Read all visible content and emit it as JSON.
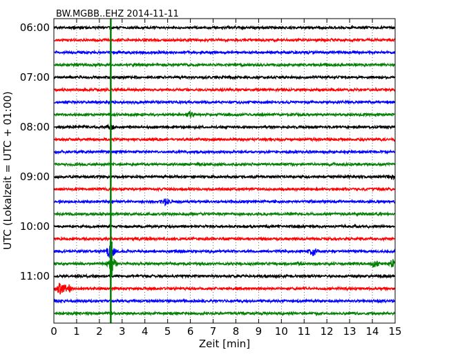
{
  "chart_data": {
    "type": "line",
    "title": "BW.MGBB..EHZ 2014-11-11",
    "xlabel": "Zeit  [min]",
    "ylabel": "UTC (Lokalzeit = UTC + 01:00)",
    "xlim": [
      0,
      15
    ],
    "x_ticks": [
      "0",
      "1",
      "2",
      "3",
      "4",
      "5",
      "6",
      "7",
      "8",
      "9",
      "10",
      "11",
      "12",
      "13",
      "14",
      "15"
    ],
    "y_ticks": [
      "06:00",
      "07:00",
      "08:00",
      "09:00",
      "10:00",
      "11:00"
    ],
    "grid": "vertical dotted",
    "trace_start": "06:00",
    "trace_interval_min": 15,
    "trace_colors": [
      "#000000",
      "#ff0000",
      "#0000ff",
      "#008000"
    ],
    "series": [
      {
        "start": "06:00",
        "color": "#000000",
        "events": []
      },
      {
        "start": "06:15",
        "color": "#ff0000",
        "events": []
      },
      {
        "start": "06:30",
        "color": "#0000ff",
        "events": []
      },
      {
        "start": "06:45",
        "color": "#008000",
        "events": []
      },
      {
        "start": "07:00",
        "color": "#000000",
        "events": []
      },
      {
        "start": "07:15",
        "color": "#ff0000",
        "events": []
      },
      {
        "start": "07:30",
        "color": "#0000ff",
        "events": []
      },
      {
        "start": "07:45",
        "color": "#008000",
        "events": [
          {
            "t": 6.0,
            "amp": 0.7
          }
        ]
      },
      {
        "start": "08:00",
        "color": "#000000",
        "events": [
          {
            "t": 2.5,
            "amp": 0.8
          }
        ]
      },
      {
        "start": "08:15",
        "color": "#ff0000",
        "events": []
      },
      {
        "start": "08:30",
        "color": "#0000ff",
        "events": []
      },
      {
        "start": "08:45",
        "color": "#008000",
        "events": []
      },
      {
        "start": "09:00",
        "color": "#000000",
        "events": [
          {
            "t": 14.8,
            "amp": 0.6
          }
        ]
      },
      {
        "start": "09:15",
        "color": "#ff0000",
        "events": []
      },
      {
        "start": "09:30",
        "color": "#0000ff",
        "events": [
          {
            "t": 4.9,
            "amp": 0.8
          }
        ]
      },
      {
        "start": "09:45",
        "color": "#008000",
        "events": []
      },
      {
        "start": "10:00",
        "color": "#000000",
        "events": []
      },
      {
        "start": "10:15",
        "color": "#ff0000",
        "events": []
      },
      {
        "start": "10:30",
        "color": "#0000ff",
        "events": [
          {
            "t": 2.5,
            "amp": 2.0
          },
          {
            "t": 11.4,
            "amp": 1.2
          }
        ]
      },
      {
        "start": "10:45",
        "color": "#008000",
        "events": [
          {
            "t": 2.55,
            "amp": 2.5
          },
          {
            "t": 14.1,
            "amp": 1.1
          },
          {
            "t": 14.9,
            "amp": 1.2
          }
        ]
      },
      {
        "start": "11:00",
        "color": "#000000",
        "events": []
      },
      {
        "start": "11:15",
        "color": "#ff0000",
        "events": [
          {
            "t": 0.25,
            "amp": 1.5
          },
          {
            "t": 0.6,
            "amp": 1.3
          }
        ]
      },
      {
        "start": "11:30",
        "color": "#0000ff",
        "events": []
      },
      {
        "start": "11:45",
        "color": "#008000",
        "events": []
      }
    ],
    "marker_line": {
      "x": 2.5,
      "color": "#008000"
    }
  }
}
